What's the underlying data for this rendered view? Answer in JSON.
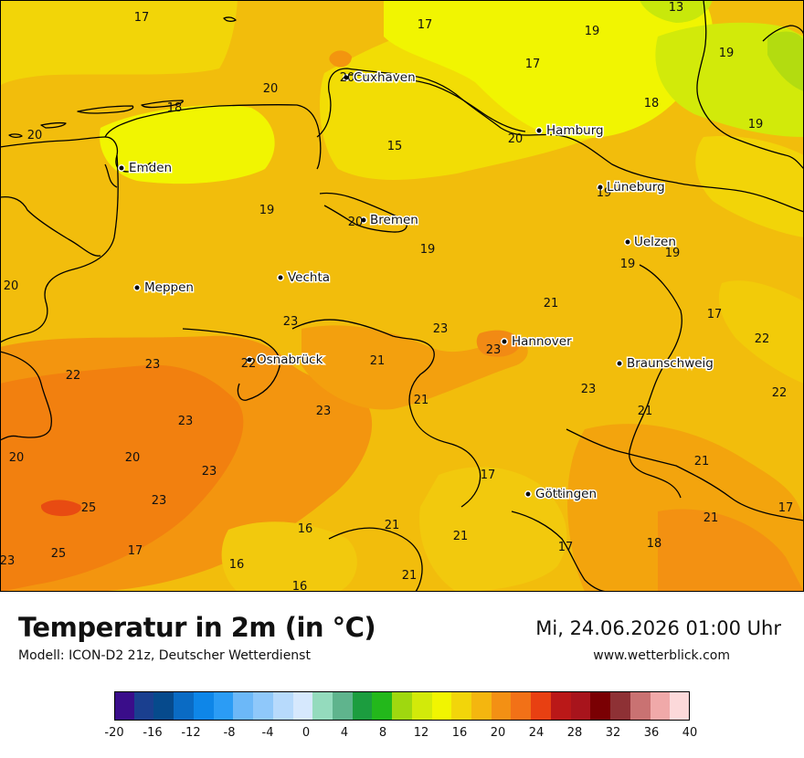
{
  "title": "Temperatur in 2m (in °C)",
  "model": "Modell: ICON-D2 21z, Deutscher Wetterdienst",
  "datetime": "Mi, 24.06.2026 01:00 Uhr",
  "website": "www.wetterblick.com",
  "cities": [
    {
      "name": "Cuxhaven"
    },
    {
      "name": "Hamburg"
    },
    {
      "name": "Emden"
    },
    {
      "name": "Lüneburg"
    },
    {
      "name": "Bremen"
    },
    {
      "name": "Uelzen"
    },
    {
      "name": "Vechta"
    },
    {
      "name": "Meppen"
    },
    {
      "name": "Hannover"
    },
    {
      "name": "Osnabrück"
    },
    {
      "name": "Braunschweig"
    },
    {
      "name": "Göttingen"
    }
  ],
  "temperature_labels": [
    "17",
    "13",
    "17",
    "19",
    "17",
    "19",
    "20",
    "20",
    "18",
    "18",
    "19",
    "20",
    "15",
    "20",
    "19",
    "19",
    "20",
    "19",
    "19",
    "20",
    "21",
    "19",
    "23",
    "23",
    "23",
    "17",
    "22",
    "23",
    "22",
    "22",
    "21",
    "21",
    "23",
    "23",
    "21",
    "22",
    "20",
    "20",
    "23",
    "21",
    "23",
    "17",
    "25",
    "23",
    "20",
    "17",
    "16",
    "21",
    "21",
    "25",
    "17",
    "16",
    "21",
    "18",
    "23",
    "17",
    "16",
    "21"
  ],
  "colorscale": {
    "ticks": [
      "-20",
      "-16",
      "-12",
      "-8",
      "-4",
      "0",
      "4",
      "8",
      "12",
      "16",
      "20",
      "24",
      "28",
      "32",
      "36",
      "40"
    ],
    "colors": [
      "#3a0d8a",
      "#1a3f8f",
      "#064a8c",
      "#0a6bc4",
      "#0e86e8",
      "#2b9cf5",
      "#6cb8f8",
      "#8fc8fa",
      "#b7dafc",
      "#d6e8fd",
      "#94dbbd",
      "#5fb48d",
      "#1c9d3f",
      "#23b81b",
      "#9fd80f",
      "#d2ea0a",
      "#f1f501",
      "#f2d50a",
      "#f4b60f",
      "#f39014",
      "#f27117",
      "#e84012",
      "#ba1818",
      "#a8141c",
      "#7a0003",
      "#8e3135",
      "#c97272",
      "#f0a9a9",
      "#fcd9da"
    ]
  }
}
